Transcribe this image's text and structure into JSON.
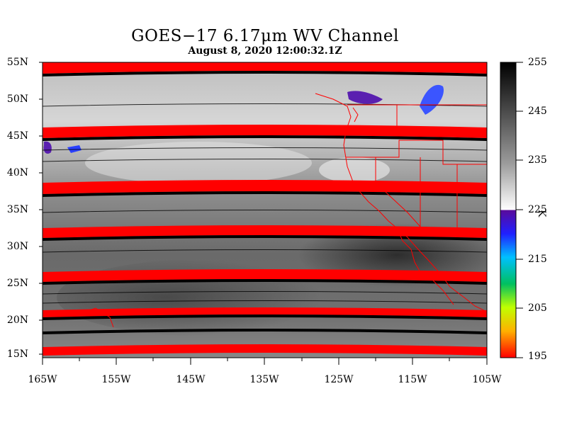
{
  "title": "GOES−17  6.17μm WV Channel",
  "subtitle": "August  8,  2020 12:00:32.1Z",
  "latitude_labels": [
    "55N",
    "50N",
    "45N",
    "40N",
    "35N",
    "30N",
    "25N",
    "20N",
    "15N"
  ],
  "longitude_labels": [
    "165W",
    "155W",
    "145W",
    "135W",
    "125W",
    "115W",
    "105W"
  ],
  "colorbar": {
    "units": "K",
    "tick_labels": [
      "255",
      "245",
      "235",
      "225",
      "215",
      "205",
      "195"
    ],
    "min": 195,
    "max": 255
  },
  "colors": {
    "background": "#ffffff",
    "missing_scanline": "#ff0000",
    "boundaries": "#ff0000"
  }
}
